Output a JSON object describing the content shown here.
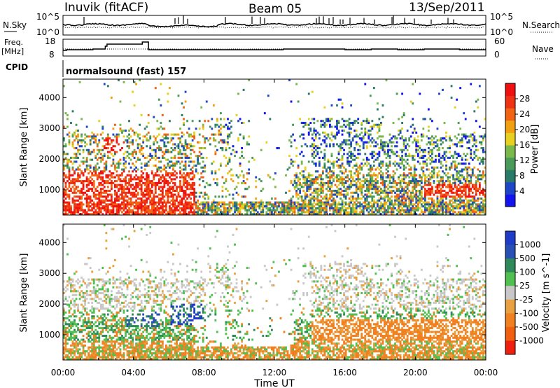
{
  "header": {
    "station": "Inuvik (fitACF)",
    "beam": "Beam 05",
    "date": "13/Sep/2011"
  },
  "panels": {
    "nsky": {
      "label": "N.Sky",
      "left_ticks": [
        "10^5",
        "10^0"
      ],
      "right_ticks": [
        "10^5",
        "10^0"
      ],
      "right_label": "N.Search"
    },
    "freq": {
      "label_line1": "Freq.",
      "label_line2": "[MHz]",
      "left_ticks": [
        "18",
        "8"
      ],
      "right_ticks": [
        "60",
        "0"
      ],
      "right_label": "Nave"
    },
    "cpid": {
      "label": "CPID",
      "program": "normalsound (fast) 157"
    }
  },
  "colors": {
    "power_scale": [
      "#1414f0",
      "#1e46c8",
      "#2a7a6a",
      "#4a9a5a",
      "#7ab84a",
      "#e8d020",
      "#f0a010",
      "#f06414",
      "#f03214",
      "#f01010"
    ],
    "velocity_scale": [
      "#1e3cc8",
      "#2850b4",
      "#2e8a5a",
      "#50c050",
      "#c8c8c8",
      "#e8a040",
      "#f08020",
      "#f06010",
      "#f02010"
    ]
  },
  "chart_data": [
    {
      "type": "heatmap",
      "name": "power",
      "ylabel": "Slant Range [km]",
      "y_ticks": [
        "4000",
        "3000",
        "2000",
        "1000"
      ],
      "ylim": [
        180,
        4600
      ],
      "xlim_hours": [
        0,
        24
      ],
      "colorbar_label": "Power [dB]",
      "colorbar_ticks": [
        "28",
        "24",
        "20",
        "16",
        "12",
        "8",
        "4"
      ],
      "colorbar_range": [
        0,
        32
      ]
    },
    {
      "type": "heatmap",
      "name": "velocity",
      "ylabel": "Slant Range [km]",
      "y_ticks": [
        "4000",
        "3000",
        "2000",
        "1000"
      ],
      "ylim": [
        180,
        4600
      ],
      "xlim_hours": [
        0,
        24
      ],
      "colorbar_label": "Velocity [m s^-1]",
      "colorbar_ticks": [
        "1000",
        "500",
        "100",
        "25",
        "-25",
        "-100",
        "-500",
        "-1000"
      ]
    }
  ],
  "x_axis": {
    "ticks": [
      "00:00",
      "04:00",
      "08:00",
      "12:00",
      "16:00",
      "20:00",
      "00:00"
    ],
    "label": "Time UT"
  }
}
